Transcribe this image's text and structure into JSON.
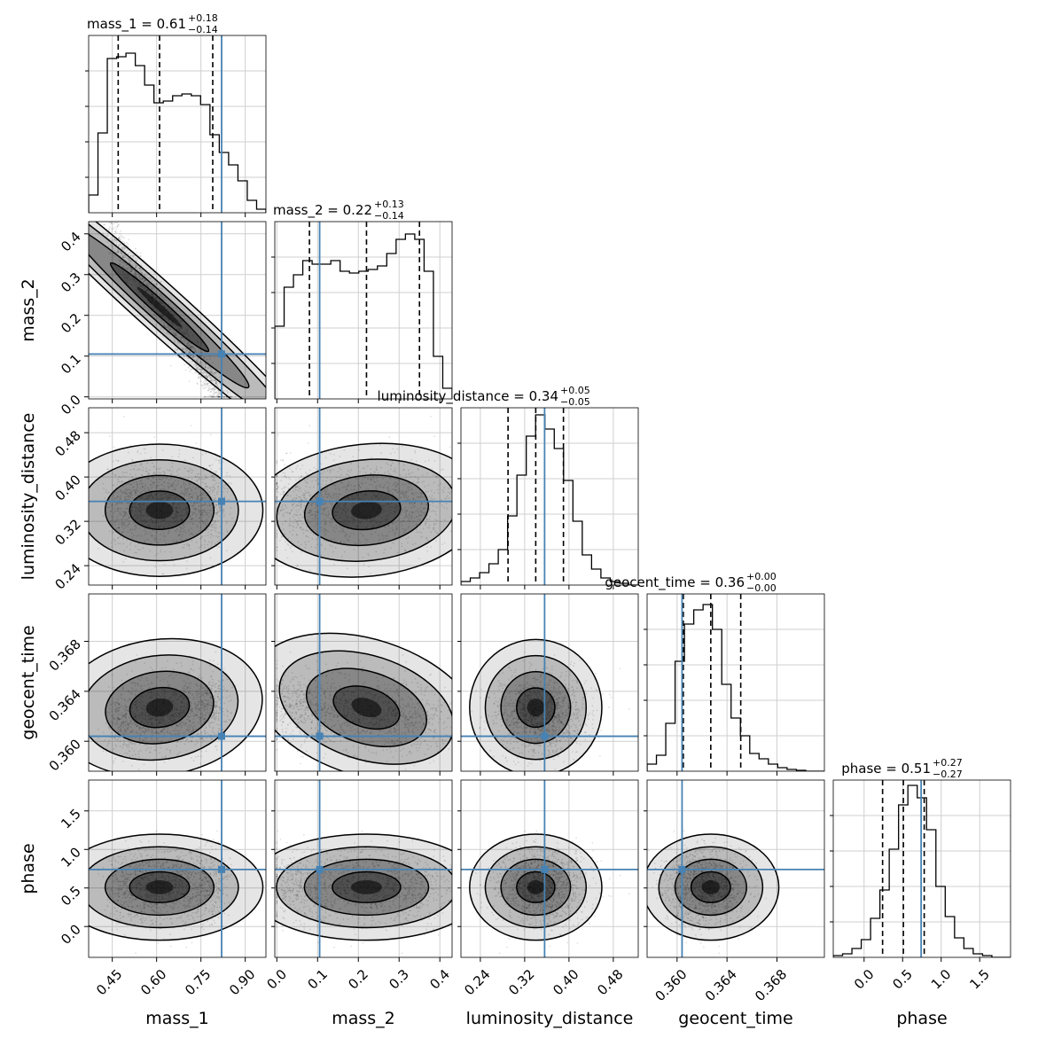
{
  "chart_data": {
    "type": "corner",
    "parameters": [
      "mass_1",
      "mass_2",
      "luminosity_distance",
      "geocent_time",
      "phase"
    ],
    "axis_labels": [
      "mass_1",
      "mass_2",
      "luminosity_distance",
      "geocent_time",
      "phase"
    ],
    "grid": true,
    "truth_color": "#4682b4",
    "ranges": {
      "mass_1": [
        0.37,
        0.97
      ],
      "mass_2": [
        -0.005,
        0.43
      ],
      "luminosity_distance": [
        0.205,
        0.525
      ],
      "geocent_time": [
        0.3576,
        0.3718
      ],
      "phase": [
        -0.4,
        1.9
      ]
    },
    "ticks": {
      "mass_1": [
        "0.45",
        "0.60",
        "0.75",
        "0.90"
      ],
      "mass_2": [
        "0.0",
        "0.1",
        "0.2",
        "0.3",
        "0.4"
      ],
      "luminosity_distance": [
        "0.24",
        "0.32",
        "0.40",
        "0.48"
      ],
      "geocent_time": [
        "0.360",
        "0.364",
        "0.368"
      ],
      "phase": [
        "0.0",
        "0.5",
        "1.0",
        "1.5"
      ]
    },
    "truths": {
      "mass_1": 0.82,
      "mass_2": 0.105,
      "luminosity_distance": 0.356,
      "geocent_time": 0.3604,
      "phase": 0.74
    },
    "quantiles": {
      "mass_1": [
        0.47,
        0.61,
        0.79
      ],
      "mass_2": [
        0.08,
        0.22,
        0.35
      ],
      "luminosity_distance": [
        0.29,
        0.34,
        0.39
      ],
      "geocent_time": [
        0.3605,
        0.3627,
        0.3651
      ],
      "phase": [
        0.24,
        0.51,
        0.78
      ]
    },
    "titles": [
      {
        "text": "mass_1 = 0.61",
        "sup": "+0.18",
        "sub": "−0.14"
      },
      {
        "text": "mass_2 = 0.22",
        "sup": "+0.13",
        "sub": "−0.14"
      },
      {
        "text": "luminosity_distance = 0.34",
        "sup": "+0.05",
        "sub": "−0.05"
      },
      {
        "text": "geocent_time = 0.36",
        "sup": "+0.00",
        "sub": "−0.00"
      },
      {
        "text": "phase = 0.51",
        "sup": "+0.27",
        "sub": "−0.27"
      }
    ],
    "histograms": {
      "mass_1": [
        0.1,
        0.45,
        0.87,
        0.88,
        0.9,
        0.83,
        0.72,
        0.62,
        0.63,
        0.66,
        0.67,
        0.66,
        0.61,
        0.44,
        0.34,
        0.27,
        0.18,
        0.07,
        0.02
      ],
      "mass_2": [
        0.41,
        0.63,
        0.7,
        0.78,
        0.76,
        0.76,
        0.78,
        0.72,
        0.71,
        0.72,
        0.73,
        0.75,
        0.82,
        0.9,
        0.93,
        0.9,
        0.72,
        0.24,
        0.06
      ],
      "luminosity_distance": [
        0.02,
        0.04,
        0.07,
        0.12,
        0.2,
        0.39,
        0.62,
        0.84,
        0.96,
        0.88,
        0.77,
        0.59,
        0.36,
        0.17,
        0.09,
        0.04,
        0.02,
        0.01,
        0.0
      ],
      "geocent_time": [
        0.04,
        0.09,
        0.27,
        0.62,
        0.83,
        0.91,
        0.94,
        0.8,
        0.49,
        0.3,
        0.2,
        0.1,
        0.07,
        0.04,
        0.02,
        0.01,
        0.005,
        0.0,
        0.0
      ],
      "phase": [
        0.01,
        0.02,
        0.05,
        0.1,
        0.22,
        0.38,
        0.61,
        0.86,
        0.97,
        0.9,
        0.72,
        0.4,
        0.23,
        0.11,
        0.05,
        0.02,
        0.01,
        0.0,
        0.0
      ]
    }
  }
}
